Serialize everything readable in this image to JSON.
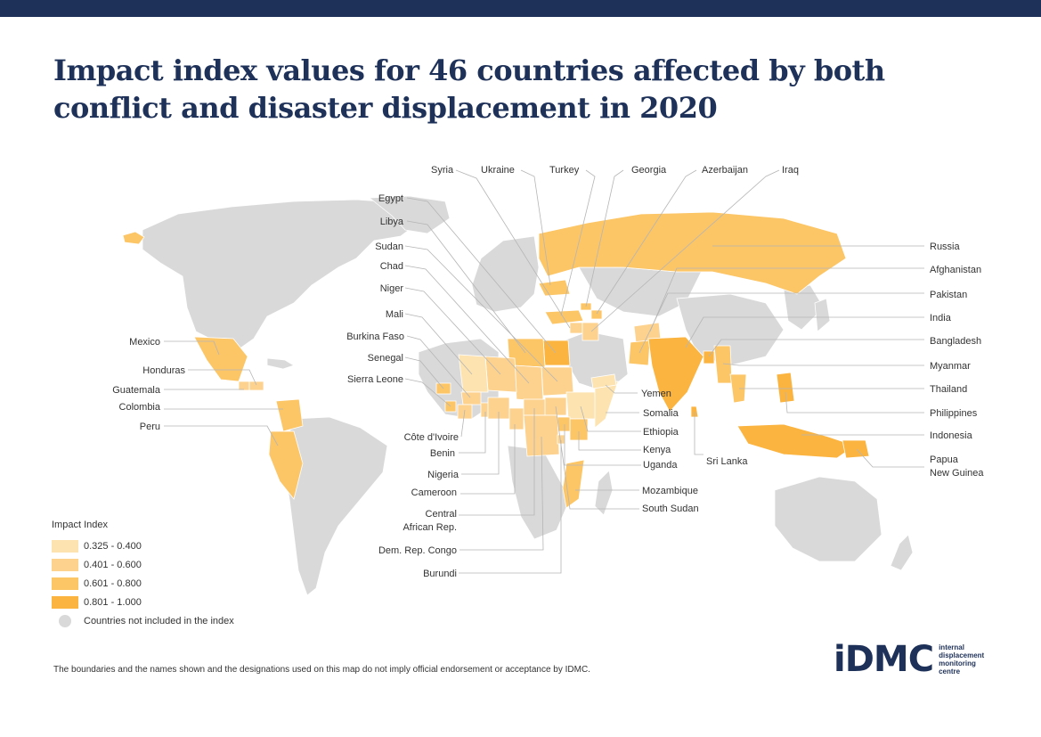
{
  "title": "Impact index values for 46 countries affected by both conflict and disaster displacement in 2020",
  "colors": {
    "topbar": "#1e3159",
    "land_excluded": "#d9d9d9",
    "class_1": "#fde3b0",
    "class_2": "#fdd28e",
    "class_3": "#fcc566",
    "class_4": "#fbb440"
  },
  "legend": {
    "title": "Impact Index",
    "items": [
      {
        "label": "0.325 - 0.400",
        "color": "#fde3b0"
      },
      {
        "label": "0.401 - 0.600",
        "color": "#fdd28e"
      },
      {
        "label": "0.601 - 0.800",
        "color": "#fcc566"
      },
      {
        "label": "0.801 - 1.000",
        "color": "#fbb440"
      }
    ],
    "excluded": {
      "label": "Countries not included in the index",
      "color": "#d9d9d9"
    }
  },
  "labels": {
    "syria": "Syria",
    "ukraine": "Ukraine",
    "turkey": "Turkey",
    "georgia": "Georgia",
    "azerbaijan": "Azerbaijan",
    "iraq": "Iraq",
    "egypt": "Egypt",
    "libya": "Libya",
    "sudan": "Sudan",
    "chad": "Chad",
    "niger": "Niger",
    "mali": "Mali",
    "burkina_faso": "Burkina Faso",
    "senegal": "Senegal",
    "sierra_leone": "Sierra Leone",
    "mexico": "Mexico",
    "honduras": "Honduras",
    "guatemala": "Guatemala",
    "colombia": "Colombia",
    "peru": "Peru",
    "cote_divoire": "Côte d'Ivoire",
    "benin": "Benin",
    "nigeria": "Nigeria",
    "cameroon": "Cameroon",
    "car_line1": "Central",
    "car_line2": "African Rep.",
    "drc": "Dem. Rep. Congo",
    "burundi": "Burundi",
    "yemen": "Yemen",
    "somalia": "Somalia",
    "ethiopia": "Ethiopia",
    "kenya": "Kenya",
    "uganda": "Uganda",
    "mozambique": "Mozambique",
    "south_sudan": "South Sudan",
    "sri_lanka": "Sri Lanka",
    "russia": "Russia",
    "afghanistan": "Afghanistan",
    "pakistan": "Pakistan",
    "india": "India",
    "bangladesh": "Bangladesh",
    "myanmar": "Myanmar",
    "thailand": "Thailand",
    "philippines": "Philippines",
    "indonesia": "Indonesia",
    "png_line1": "Papua",
    "png_line2": "New Guinea"
  },
  "footnote": "The boundaries and the names shown and the designations used on this map do not imply official endorsement or acceptance by IDMC.",
  "logo": {
    "wordmark": "iDMC",
    "tagline": [
      "internal",
      "displacement",
      "monitoring",
      "centre"
    ]
  }
}
